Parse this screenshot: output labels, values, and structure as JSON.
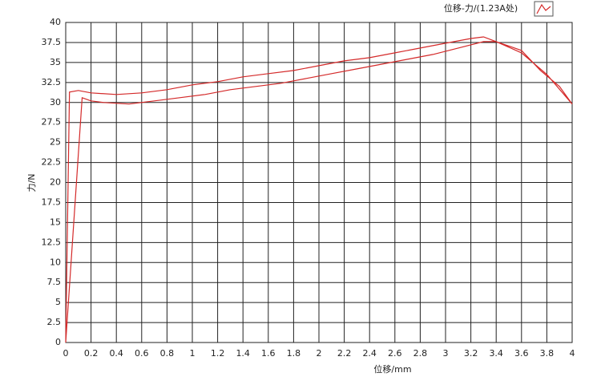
{
  "chart_data": {
    "type": "line",
    "legend_label": "位移-力/(1.23A处)",
    "xlabel": "位移/mm",
    "ylabel": "力/N",
    "x": [
      0,
      0.03,
      0.1,
      0.2,
      0.4,
      0.6,
      0.8,
      1.0,
      1.2,
      1.4,
      1.6,
      1.8,
      2.0,
      2.2,
      2.4,
      2.6,
      2.8,
      3.0,
      3.2,
      3.3,
      3.4,
      3.6,
      3.75,
      3.9,
      4.0,
      3.8,
      3.6,
      3.4,
      3.3,
      3.1,
      2.9,
      2.7,
      2.5,
      2.3,
      2.1,
      1.9,
      1.7,
      1.5,
      1.3,
      1.1,
      0.9,
      0.7,
      0.5,
      0.3,
      0.2,
      0.13,
      0
    ],
    "series": [
      {
        "name": "位移-力/(1.23A处)",
        "color": "#d42a2a",
        "values": [
          0,
          31.3,
          31.5,
          31.2,
          31,
          31.2,
          31.6,
          32.2,
          32.6,
          33.2,
          33.6,
          34,
          34.6,
          35.2,
          35.6,
          36.2,
          36.8,
          37.4,
          38,
          38.2,
          37.6,
          36.5,
          34,
          32,
          29.8,
          33.5,
          36.2,
          37.6,
          37.6,
          36.8,
          36,
          35.4,
          34.8,
          34.2,
          33.6,
          33,
          32.4,
          32,
          31.6,
          31,
          30.6,
          30.2,
          29.8,
          30,
          30.2,
          30.6,
          0
        ]
      }
    ],
    "xlim": [
      0,
      4
    ],
    "ylim": [
      0,
      40
    ],
    "xticks": [
      0,
      0.2,
      0.4,
      0.6,
      0.8,
      1,
      1.2,
      1.4,
      1.6,
      1.8,
      2,
      2.2,
      2.4,
      2.6,
      2.8,
      3,
      3.2,
      3.4,
      3.6,
      3.8,
      4
    ],
    "yticks": [
      0,
      2.5,
      5,
      7.5,
      10,
      12.5,
      15,
      17.5,
      20,
      22.5,
      25,
      27.5,
      30,
      32.5,
      35,
      37.5,
      40
    ],
    "grid": true
  }
}
